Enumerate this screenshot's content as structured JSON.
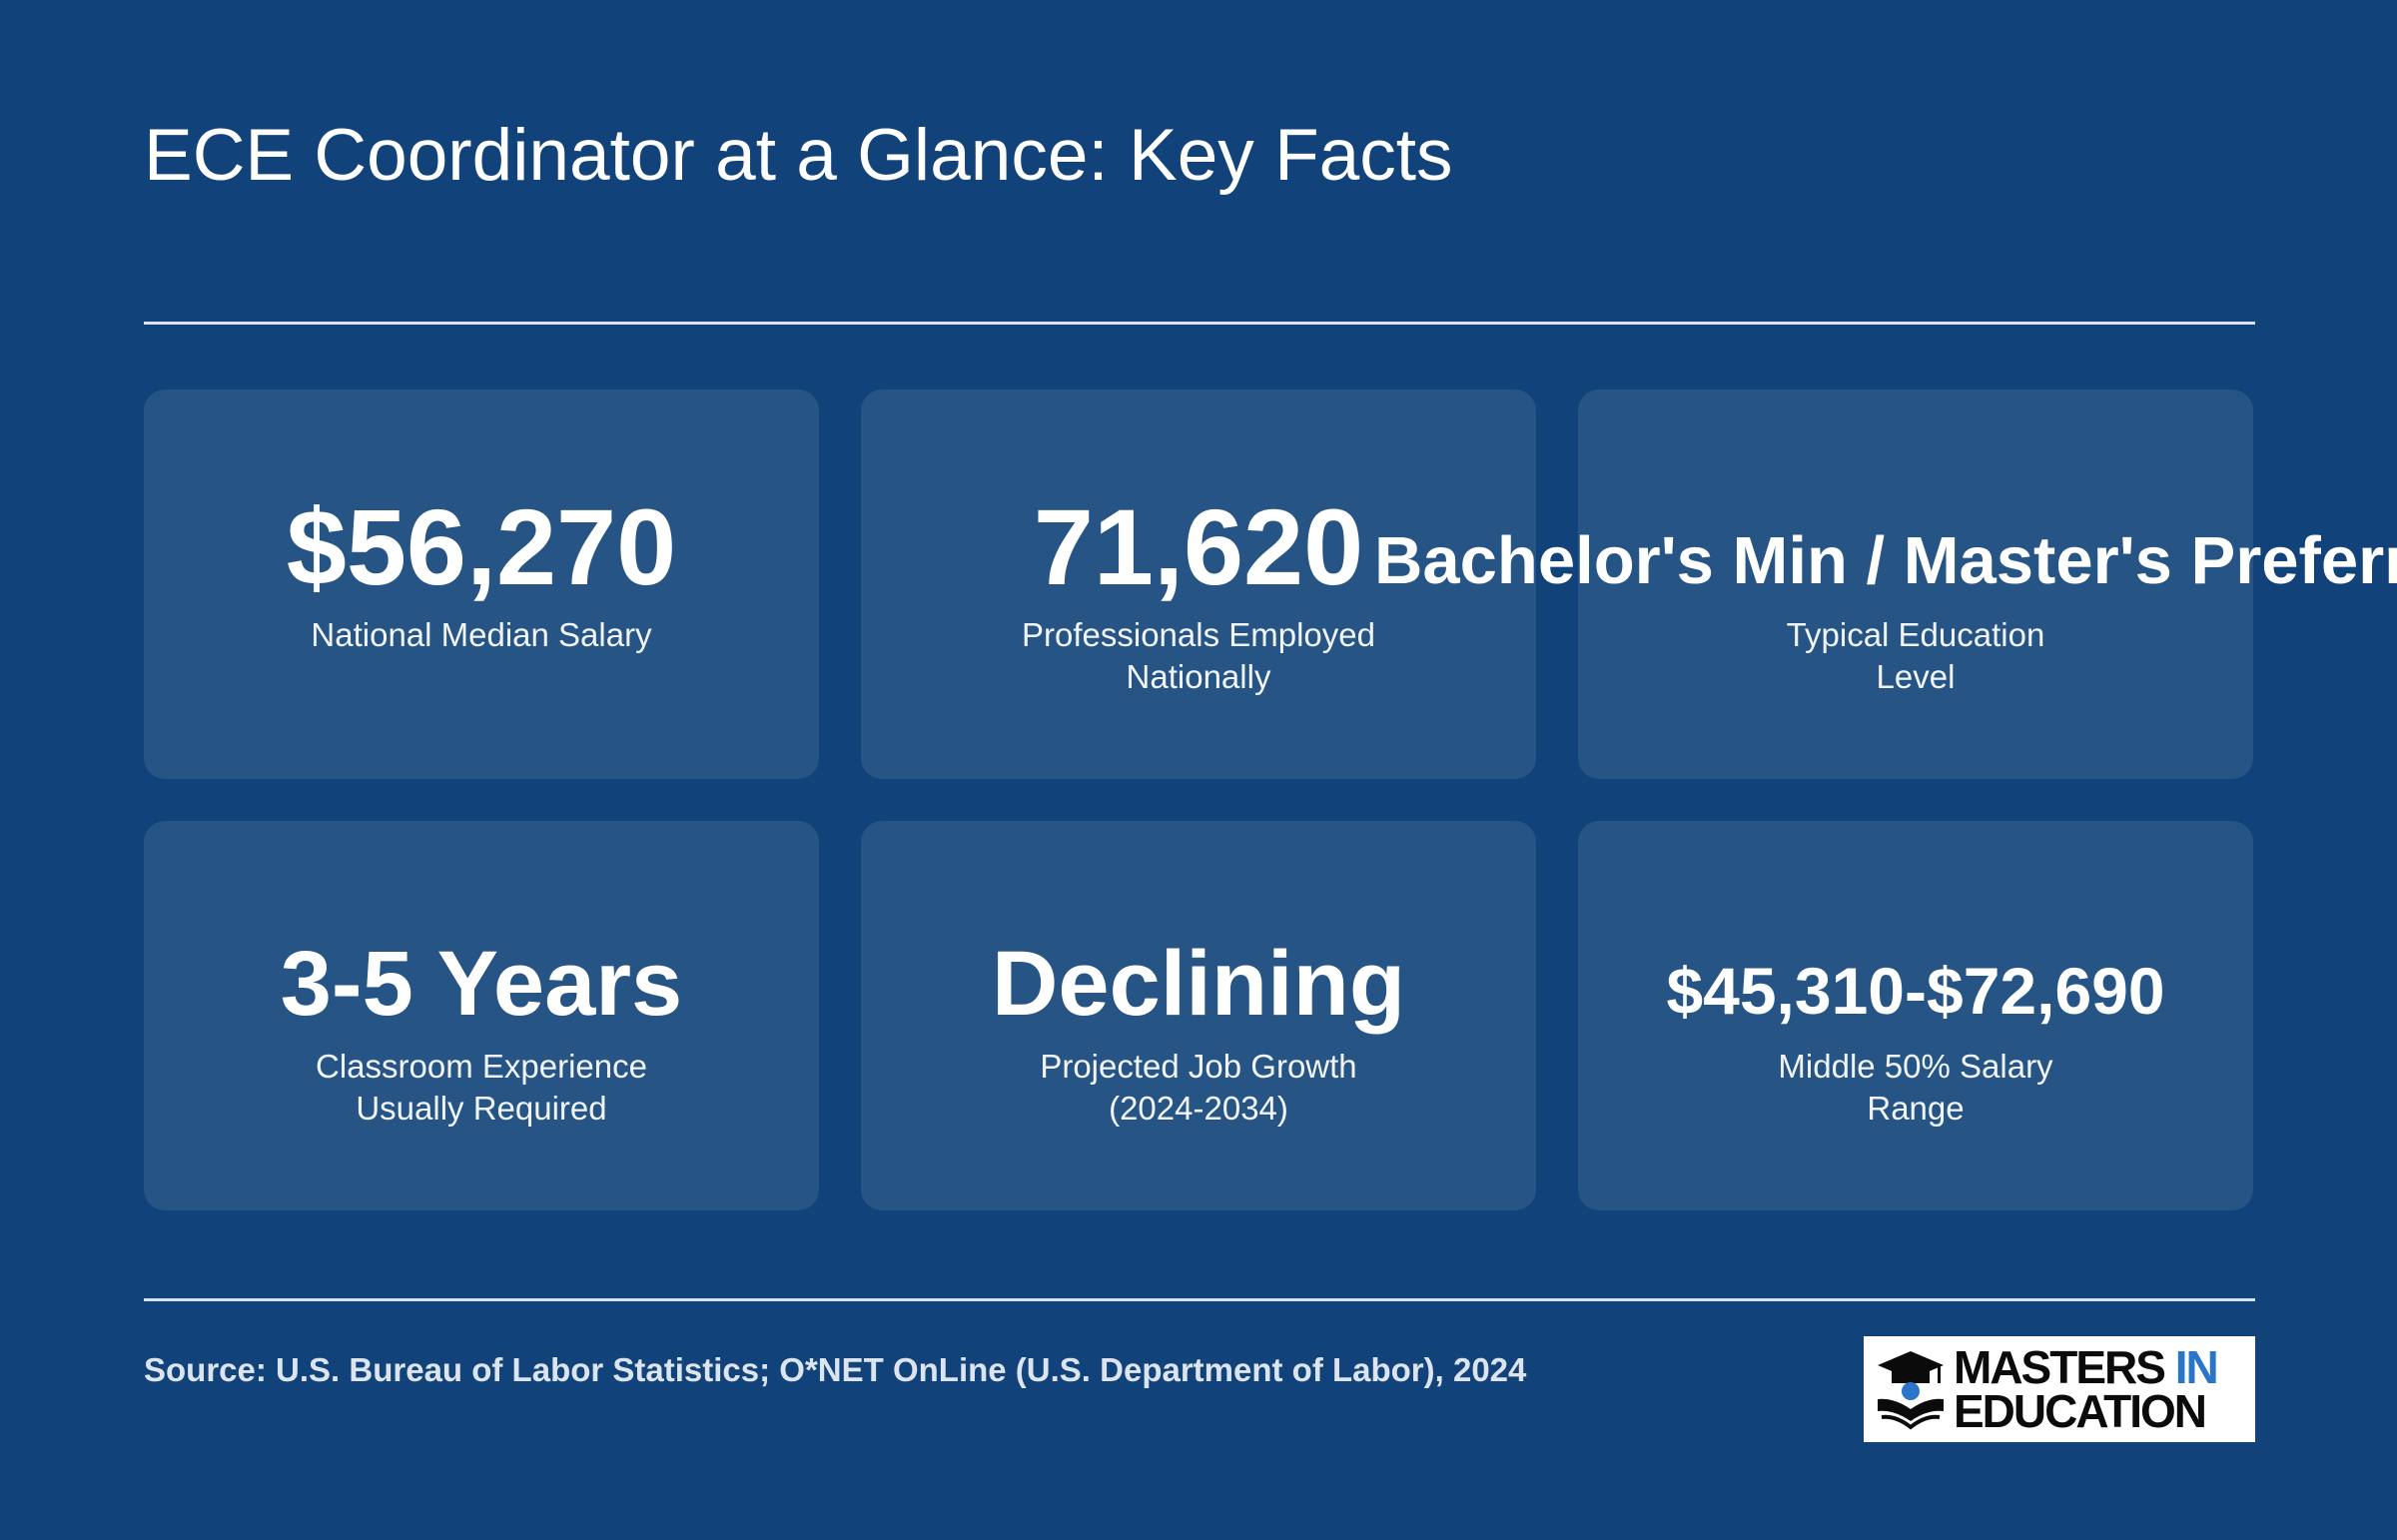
{
  "header": {
    "title": "ECE Coordinator at a Glance: Key Facts"
  },
  "cards": [
    {
      "value": "$56,270",
      "label": "National Median Salary"
    },
    {
      "value": "71,620",
      "label": "Professionals Employed Nationally"
    },
    {
      "value": "Bachelor's Min / Master's Preferred",
      "label": "Typical Education Level"
    },
    {
      "value": "3-5 Years",
      "label": "Classroom Experience Usually Required"
    },
    {
      "value": "Declining",
      "label": "Projected Job Growth (2024-2034)"
    },
    {
      "value": "$45,310-$72,690",
      "label": "Middle 50% Salary Range"
    }
  ],
  "footer": {
    "source": "Source: U.S. Bureau of Labor Statistics; O*NET OnLine (U.S. Department of Labor), 2024",
    "logo": {
      "line1": "MASTERS",
      "line1_accent": "IN",
      "line2": "EDUCATION",
      "icon": "graduation-cap-book-icon"
    }
  },
  "colors": {
    "background": "#11437a",
    "card": "#255485",
    "text": "#ffffff",
    "logo_accent": "#2a74c9"
  }
}
